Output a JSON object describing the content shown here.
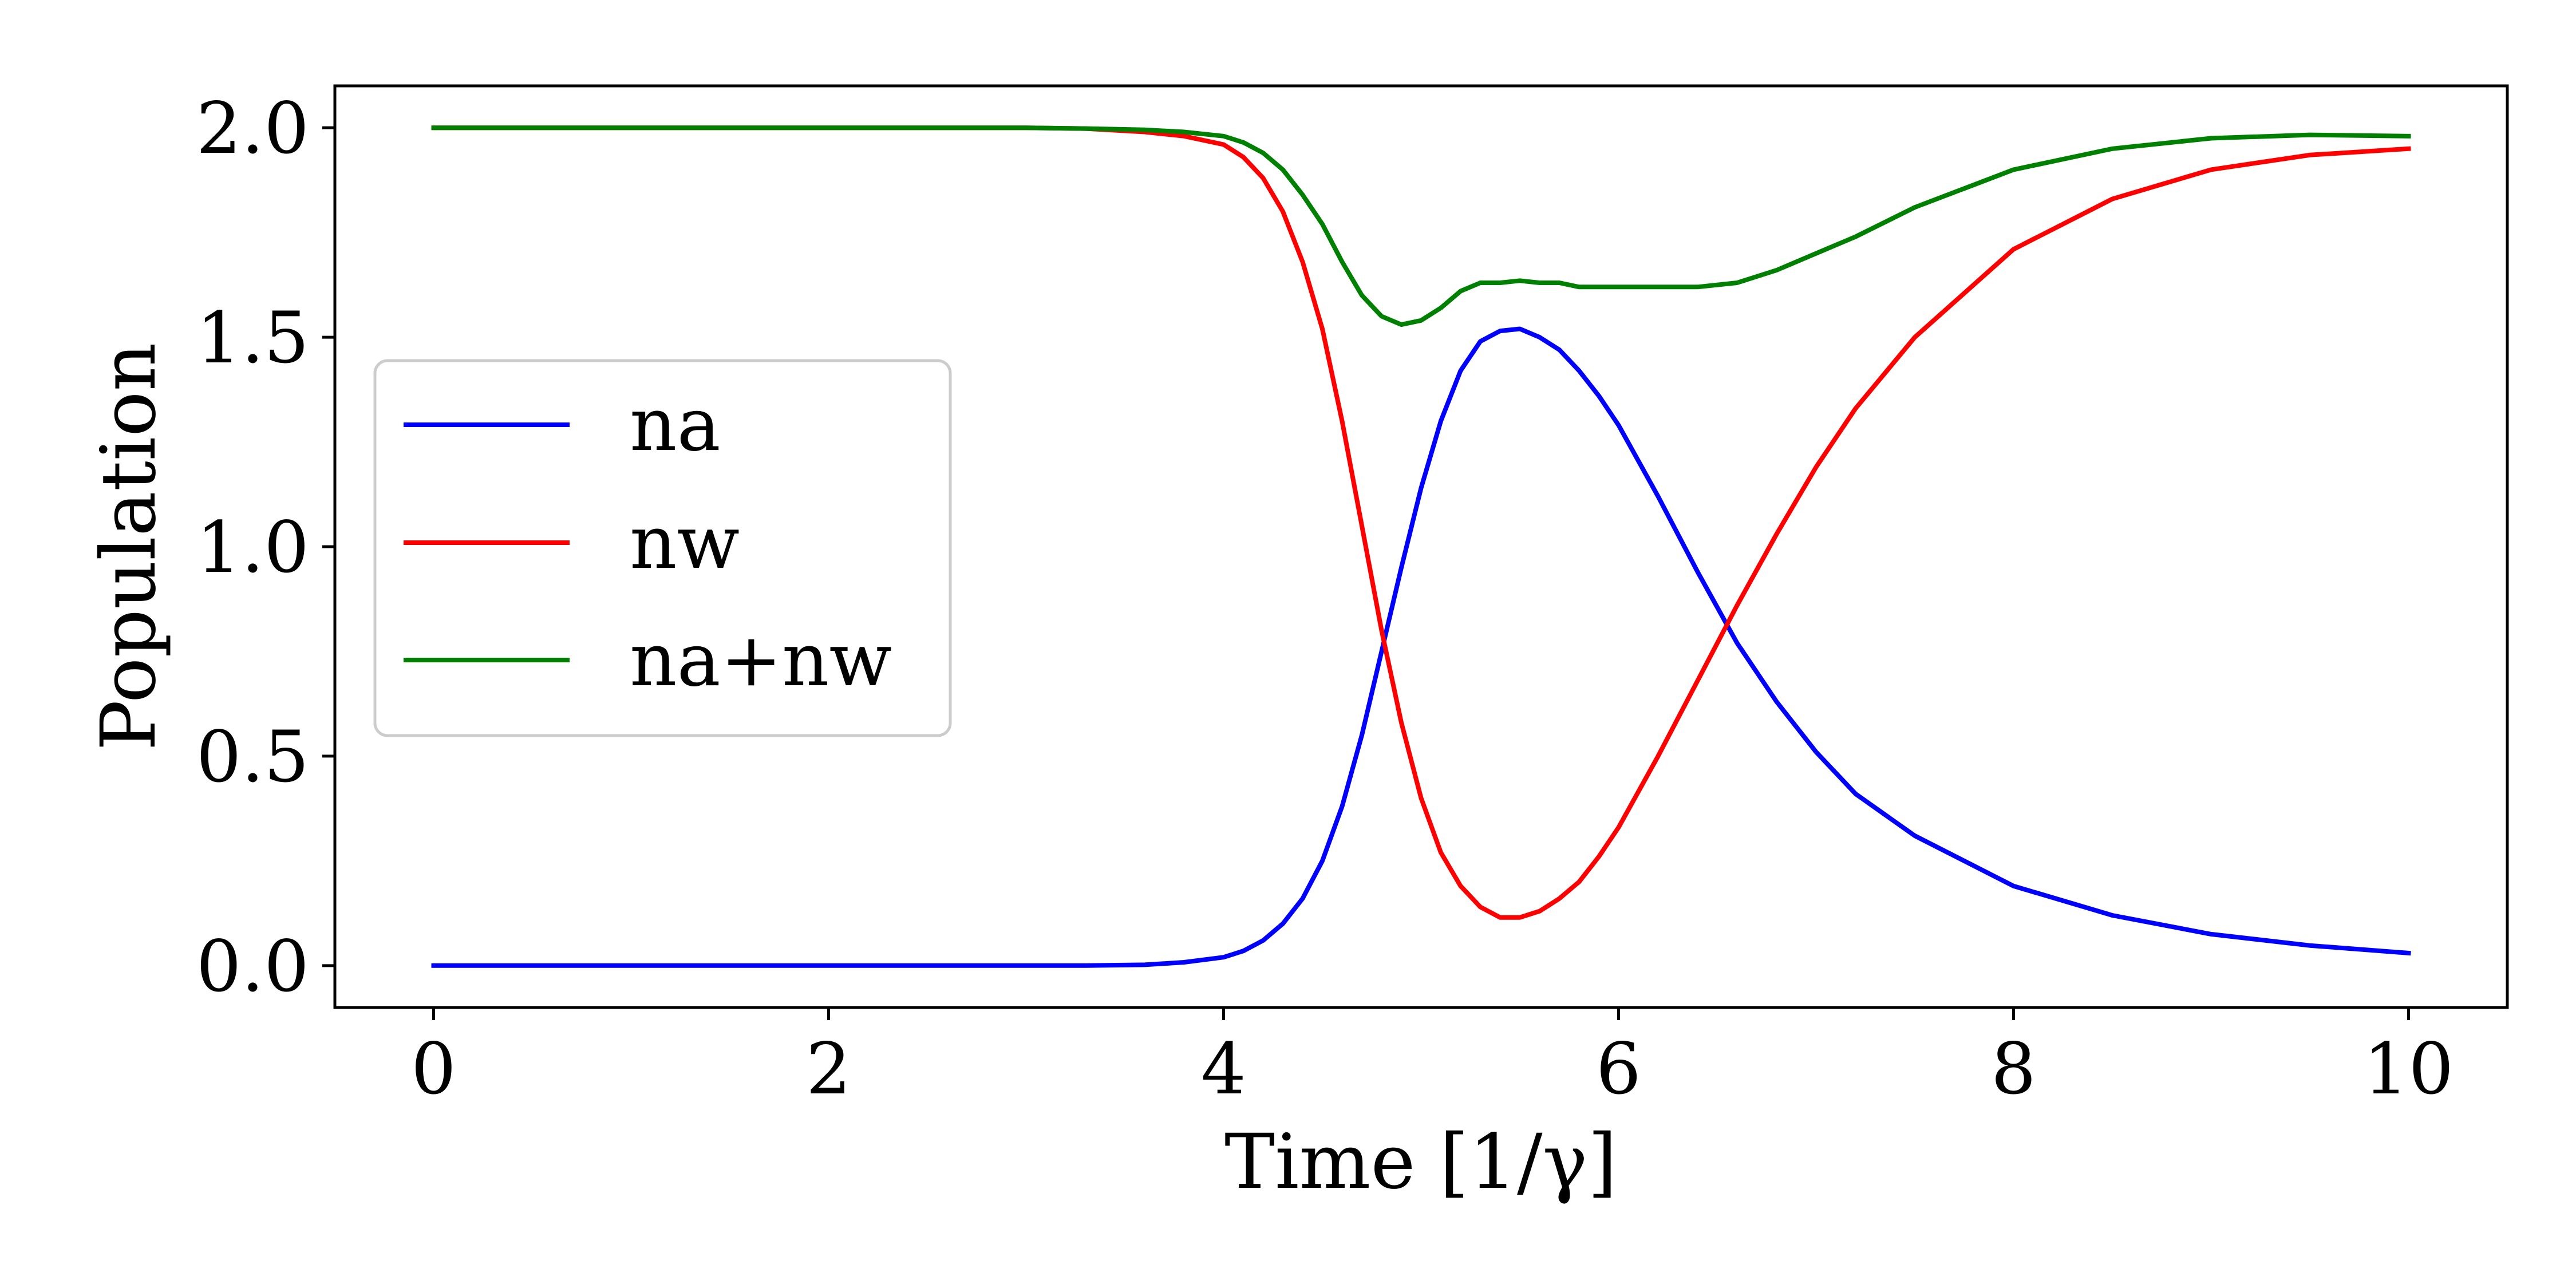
{
  "chart_data": {
    "type": "line",
    "xlabel": "Time [1/γ]",
    "ylabel": "Population",
    "xlim": [
      -0.5,
      10.5
    ],
    "ylim": [
      -0.1,
      2.1
    ],
    "xticks": [
      0,
      2,
      4,
      6,
      8,
      10
    ],
    "xtick_labels": [
      "0",
      "2",
      "4",
      "6",
      "8",
      "10"
    ],
    "yticks": [
      0.0,
      0.5,
      1.0,
      1.5,
      2.0
    ],
    "ytick_labels": [
      "0.0",
      "0.5",
      "1.0",
      "1.5",
      "2.0"
    ],
    "grid": false,
    "legend_position": "center-left",
    "x": [
      0,
      0.5,
      1,
      1.5,
      2,
      2.5,
      3,
      3.3,
      3.6,
      3.8,
      4.0,
      4.1,
      4.2,
      4.3,
      4.4,
      4.5,
      4.6,
      4.7,
      4.8,
      4.9,
      5.0,
      5.1,
      5.2,
      5.3,
      5.4,
      5.5,
      5.6,
      5.7,
      5.8,
      5.9,
      6.0,
      6.2,
      6.4,
      6.6,
      6.8,
      7.0,
      7.2,
      7.5,
      8.0,
      8.5,
      9.0,
      9.5,
      10.0
    ],
    "series": [
      {
        "name": "na",
        "color": "#0000ff",
        "values": [
          0,
          0,
          0,
          0,
          0,
          0,
          0,
          0,
          0.002,
          0.008,
          0.02,
          0.035,
          0.06,
          0.1,
          0.16,
          0.25,
          0.38,
          0.55,
          0.75,
          0.95,
          1.14,
          1.3,
          1.42,
          1.49,
          1.515,
          1.52,
          1.5,
          1.47,
          1.42,
          1.36,
          1.29,
          1.12,
          0.94,
          0.77,
          0.63,
          0.51,
          0.41,
          0.31,
          0.19,
          0.12,
          0.075,
          0.048,
          0.03
        ]
      },
      {
        "name": "nw",
        "color": "#ff0000",
        "values": [
          2.0,
          2.0,
          2.0,
          2.0,
          2.0,
          2.0,
          2.0,
          1.998,
          1.99,
          1.98,
          1.96,
          1.93,
          1.88,
          1.8,
          1.68,
          1.52,
          1.3,
          1.05,
          0.8,
          0.58,
          0.4,
          0.27,
          0.19,
          0.14,
          0.115,
          0.115,
          0.13,
          0.16,
          0.2,
          0.26,
          0.33,
          0.5,
          0.68,
          0.86,
          1.03,
          1.19,
          1.33,
          1.5,
          1.71,
          1.83,
          1.9,
          1.935,
          1.95
        ]
      },
      {
        "name": "na+nw",
        "color": "#008000",
        "values": [
          2.0,
          2.0,
          2.0,
          2.0,
          2.0,
          2.0,
          2.0,
          1.998,
          1.995,
          1.99,
          1.98,
          1.965,
          1.94,
          1.9,
          1.84,
          1.77,
          1.68,
          1.6,
          1.55,
          1.53,
          1.54,
          1.57,
          1.61,
          1.63,
          1.63,
          1.635,
          1.63,
          1.63,
          1.62,
          1.62,
          1.62,
          1.62,
          1.62,
          1.63,
          1.66,
          1.7,
          1.74,
          1.81,
          1.9,
          1.95,
          1.975,
          1.983,
          1.98
        ]
      }
    ]
  }
}
